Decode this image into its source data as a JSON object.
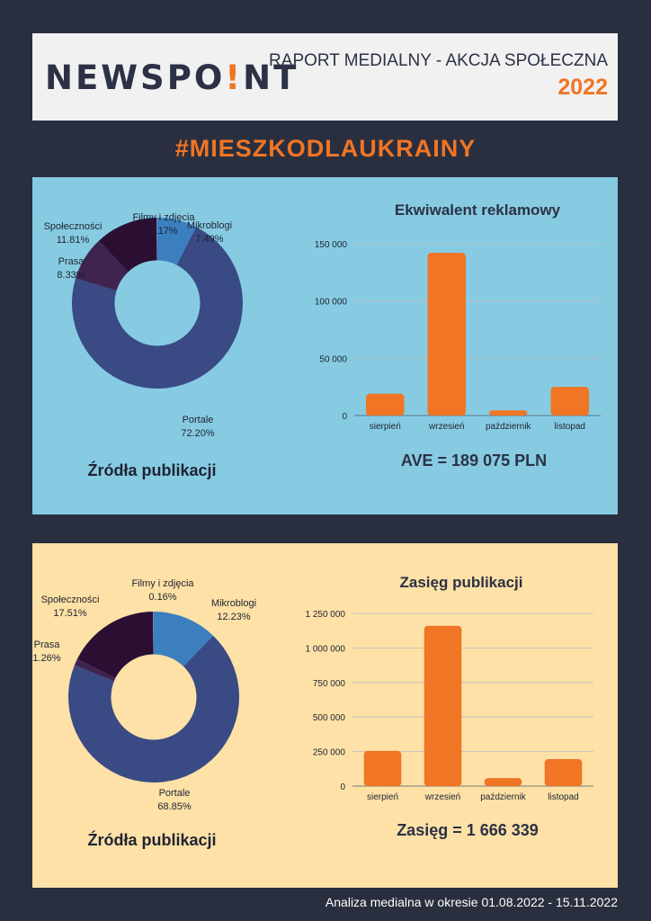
{
  "header": {
    "logo_main": "NEWSPO",
    "logo_bang": "!",
    "logo_tail": "NT",
    "report_title": "RAPORT MEDIALNY - AKCJA SPOŁECZNA",
    "year": "2022"
  },
  "hashtag": "#MIESZKODLAUKRAINY",
  "colors": {
    "accent_orange": "#f07524",
    "portale": "#3a4a85",
    "mikroblogi": "#3b7fbf",
    "filmy": "#6f7fc0",
    "spolecznosci": "#2a0f33",
    "prasa": "#3f2450",
    "panel_blue": "#86cbe2",
    "panel_yellow": "#fde1a6"
  },
  "chart_data": [
    {
      "type": "pie",
      "title": "Źródła publikacji",
      "categories": [
        "Mikroblogi",
        "Portale",
        "Prasa",
        "Społeczności",
        "Filmy i zdjęcia"
      ],
      "values": [
        7.49,
        72.2,
        8.33,
        11.81,
        0.17
      ],
      "value_labels": [
        "7.49%",
        "72.20%",
        "8.33%",
        "11.81%",
        "0.17%"
      ],
      "hole": 0.5
    },
    {
      "type": "bar",
      "title": "Ekwiwalent reklamowy",
      "categories": [
        "sierpień",
        "wrzesień",
        "październik",
        "listopad"
      ],
      "values": [
        19000,
        142000,
        4500,
        25000
      ],
      "ylim": [
        0,
        150000
      ],
      "yticks": [
        0,
        50000,
        100000,
        150000
      ],
      "ytick_labels": [
        "0",
        "50 000",
        "100 000",
        "150 000"
      ],
      "summary": "AVE = 189 075 PLN"
    },
    {
      "type": "pie",
      "title": "Źródła publikacji",
      "categories": [
        "Mikroblogi",
        "Portale",
        "Prasa",
        "Społeczności",
        "Filmy i zdjęcia"
      ],
      "values": [
        12.23,
        68.85,
        1.26,
        17.51,
        0.16
      ],
      "value_labels": [
        "12.23%",
        "68.85%",
        "1.26%",
        "17.51%",
        "0.16%"
      ],
      "hole": 0.5
    },
    {
      "type": "bar",
      "title": "Zasięg publikacji",
      "categories": [
        "sierpień",
        "wrzesień",
        "październik",
        "listopad"
      ],
      "values": [
        255000,
        1160000,
        58000,
        195000
      ],
      "ylim": [
        0,
        1250000
      ],
      "yticks": [
        0,
        250000,
        500000,
        750000,
        1000000,
        1250000
      ],
      "ytick_labels": [
        "0",
        "250 000",
        "500 000",
        "750 000",
        "1 000 000",
        "1 250 000"
      ],
      "summary": "Zasięg = 1 666 339"
    }
  ],
  "footer": "Analiza medialna w okresie 01.08.2022 - 15.11.2022"
}
